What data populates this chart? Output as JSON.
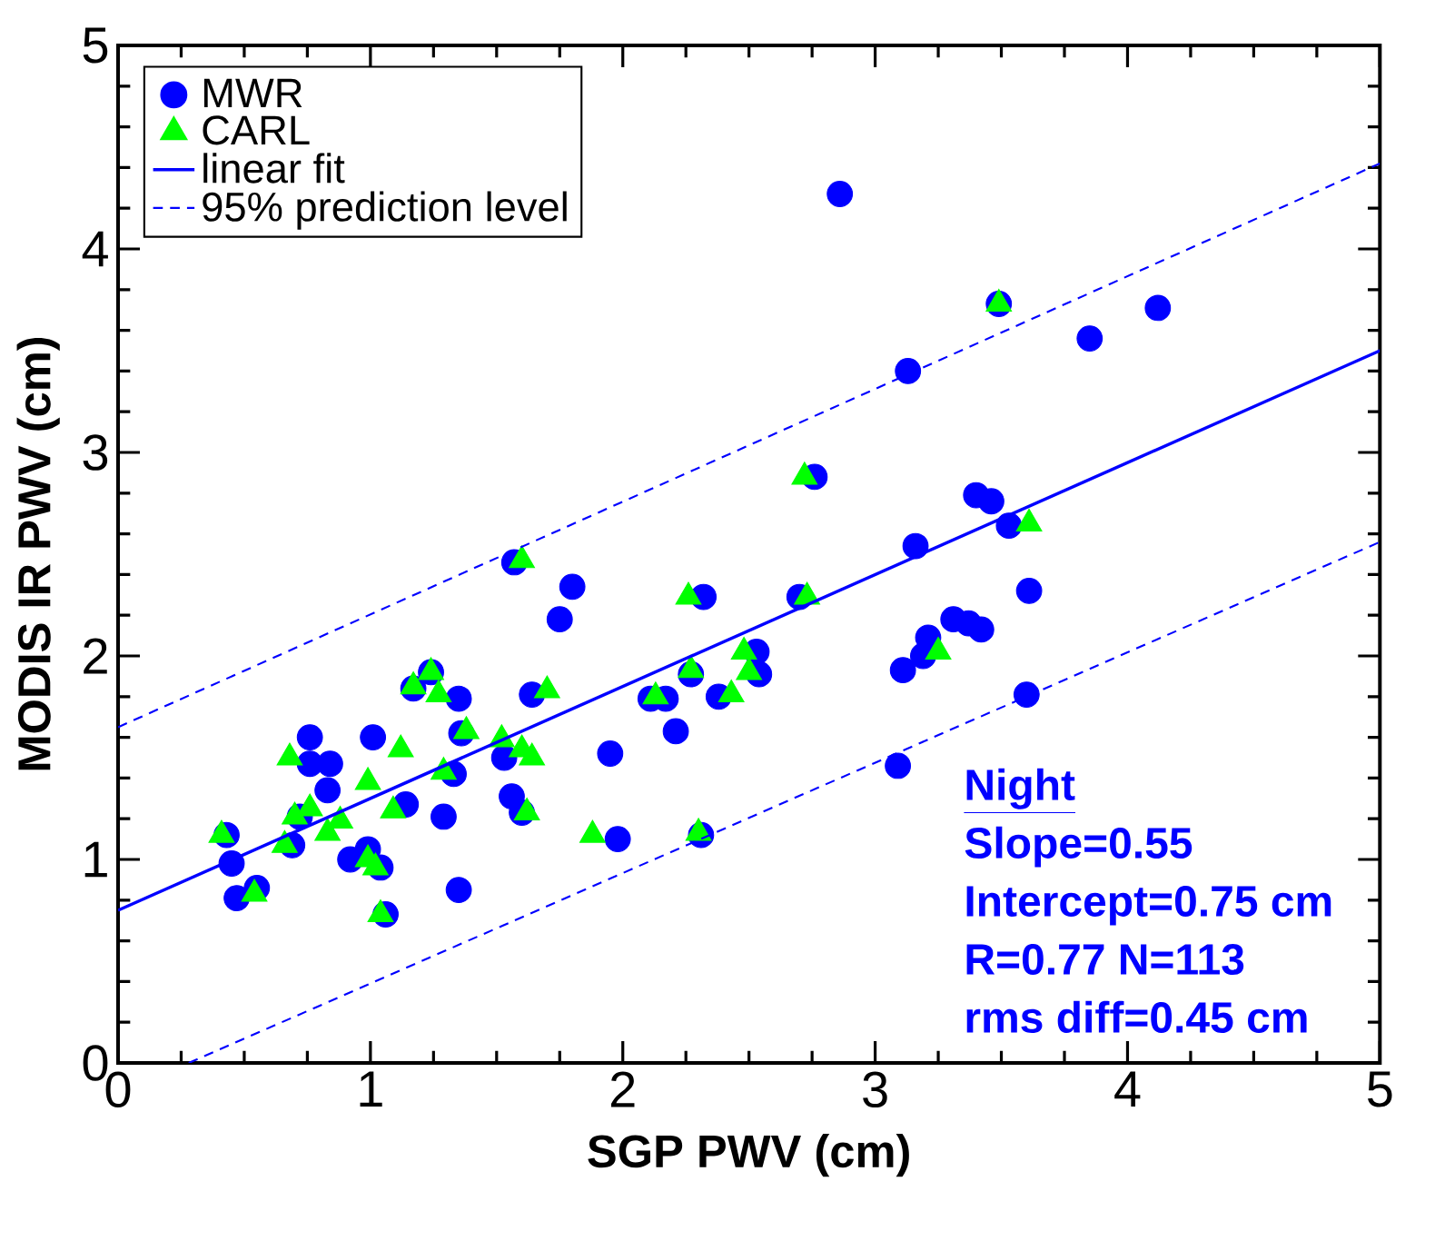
{
  "chart_data": {
    "type": "scatter",
    "xlabel": "SGP PWV (cm)",
    "ylabel": "MODIS IR PWV (cm)",
    "xlim": [
      0,
      5
    ],
    "ylim": [
      0,
      5
    ],
    "xticks": [
      0,
      1,
      2,
      3,
      4,
      5
    ],
    "yticks": [
      0,
      1,
      2,
      3,
      4,
      5
    ],
    "legend": "top left",
    "grid": false,
    "series": [
      {
        "name": "MWR",
        "marker": "circle",
        "color": "#0000ff",
        "x": [
          0.43,
          0.45,
          0.47,
          0.55,
          0.69,
          0.72,
          0.76,
          0.76,
          0.84,
          0.83,
          1.01,
          0.92,
          0.99,
          1.04,
          1.06,
          1.14,
          1.29,
          1.35,
          1.35,
          1.24,
          1.17,
          1.57,
          1.33,
          1.36,
          1.53,
          1.56,
          1.6,
          1.64,
          1.8,
          1.75,
          1.95,
          1.98,
          2.21,
          2.17,
          2.11,
          2.32,
          2.38,
          2.31,
          2.53,
          2.54,
          2.7,
          2.76,
          2.27,
          2.86,
          3.13,
          3.49,
          3.85,
          4.12,
          3.4,
          3.46,
          3.53,
          3.16,
          3.61,
          3.31,
          3.37,
          3.42,
          3.21,
          3.19,
          3.11,
          3.6,
          3.09
        ],
        "values": [
          1.12,
          0.98,
          0.81,
          0.86,
          1.07,
          1.21,
          1.6,
          1.47,
          1.47,
          1.34,
          1.6,
          1.0,
          1.05,
          0.96,
          0.73,
          1.27,
          1.21,
          0.85,
          1.79,
          1.92,
          1.84,
          2.46,
          1.42,
          1.62,
          1.5,
          1.31,
          1.23,
          1.81,
          2.34,
          2.18,
          1.52,
          1.1,
          1.63,
          1.79,
          1.79,
          2.29,
          1.8,
          1.12,
          2.02,
          1.91,
          2.29,
          2.88,
          1.91,
          4.27,
          3.4,
          3.73,
          3.56,
          3.71,
          2.79,
          2.76,
          2.64,
          2.54,
          2.32,
          2.18,
          2.16,
          2.13,
          2.09,
          2.0,
          1.93,
          1.81,
          1.46
        ]
      },
      {
        "name": "CARL",
        "marker": "triangle",
        "color": "#00ff00",
        "x": [
          0.41,
          0.54,
          0.66,
          0.68,
          0.7,
          0.76,
          0.83,
          0.88,
          0.99,
          0.99,
          1.02,
          1.04,
          1.09,
          1.12,
          1.17,
          1.24,
          1.27,
          1.29,
          1.38,
          1.52,
          1.6,
          1.64,
          1.6,
          1.62,
          1.7,
          1.88,
          2.26,
          2.13,
          2.27,
          2.43,
          2.48,
          2.5,
          2.3,
          2.72,
          2.73,
          3.49,
          3.61,
          3.25
        ],
        "values": [
          1.12,
          0.83,
          1.07,
          1.5,
          1.21,
          1.25,
          1.13,
          1.19,
          1.38,
          1.0,
          0.96,
          0.73,
          1.24,
          1.54,
          1.85,
          1.92,
          1.81,
          1.43,
          1.63,
          1.59,
          1.54,
          1.5,
          2.47,
          1.23,
          1.83,
          1.12,
          2.29,
          1.8,
          1.93,
          1.81,
          2.02,
          1.92,
          1.13,
          2.88,
          2.29,
          3.73,
          2.65,
          2.02
        ]
      },
      {
        "name": "linear fit",
        "type": "line",
        "line_style": "solid",
        "color": "#0000ff",
        "x": [
          0,
          5
        ],
        "values": [
          0.75,
          3.5
        ]
      },
      {
        "name": "95% prediction level",
        "type": "line",
        "line_style": "dashed",
        "color": "#0000ff",
        "x": [
          0,
          5
        ],
        "values": [
          1.65,
          4.42
        ]
      },
      {
        "type": "line",
        "line_style": "dashed",
        "color": "#0000ff",
        "x": [
          0.28,
          5
        ],
        "values": [
          0,
          2.56
        ]
      }
    ],
    "annotations": [
      "Night",
      "Slope=0.55",
      "Intercept=0.75 cm",
      "R=0.77 N=113",
      "rms diff=0.45 cm"
    ]
  }
}
